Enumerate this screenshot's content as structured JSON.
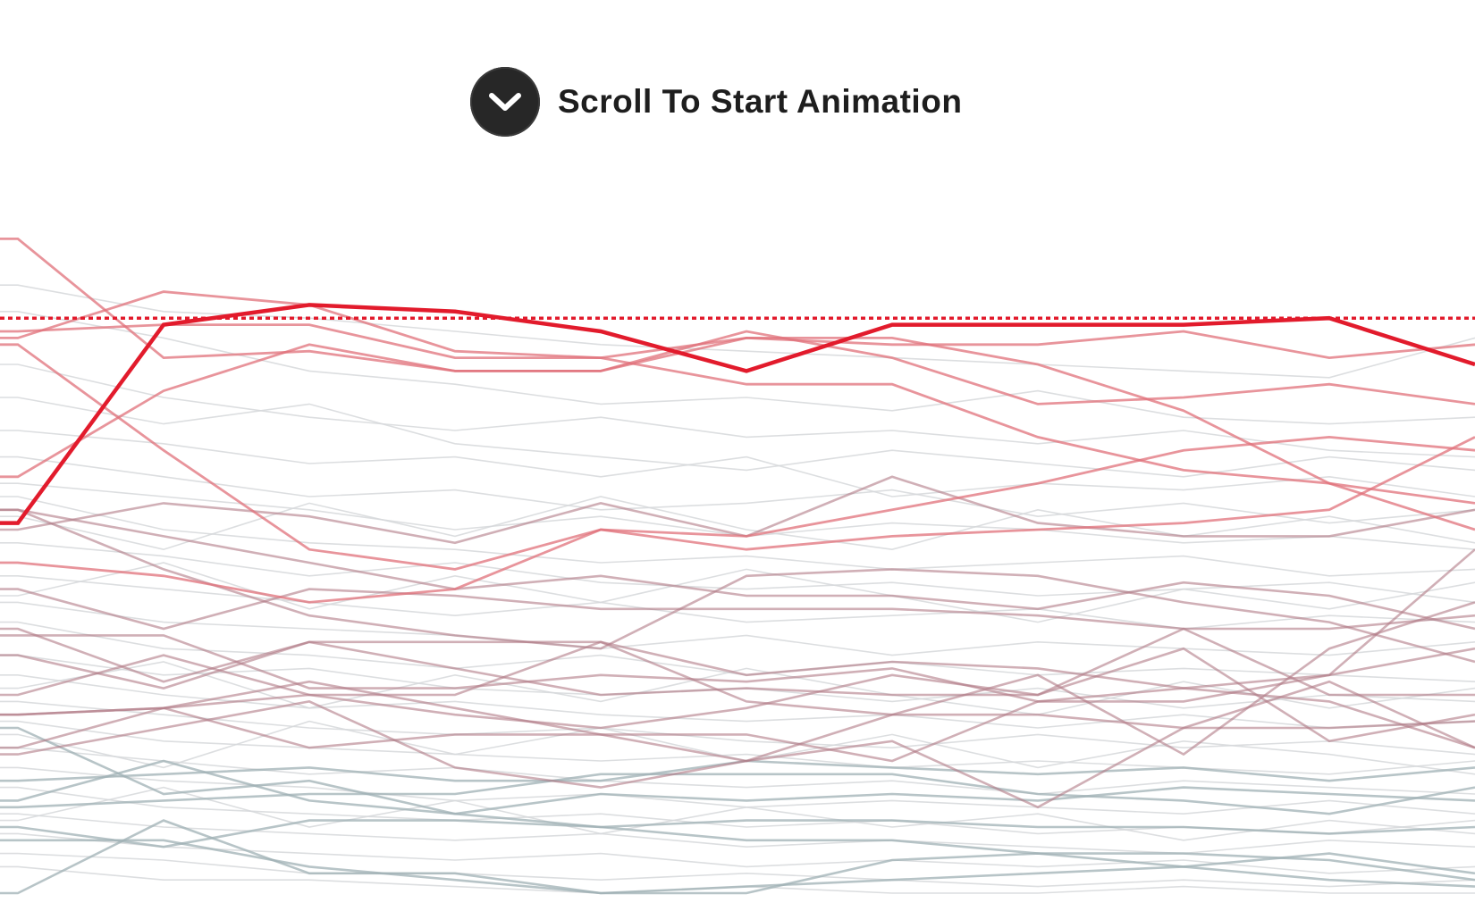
{
  "prompt": {
    "label": "Scroll To Start Animation",
    "icon": "chevron-down-icon"
  },
  "colors": {
    "highlight": "#e21b2c",
    "high": "#e0707a",
    "mid": "#b07a86",
    "low": "#9fb0b4",
    "background_line": "#d6d8da",
    "button": "#272727"
  },
  "chart_data": {
    "type": "line",
    "title": "",
    "xlabel": "",
    "ylabel": "",
    "ylim": [
      0,
      100
    ],
    "x": [
      0,
      1,
      2,
      3,
      4,
      5,
      6,
      7,
      8,
      9,
      10
    ],
    "grid": false,
    "legend": "none",
    "reference_line": {
      "value": 87,
      "style": "dotted",
      "color": "#e21b2c"
    },
    "series": [
      {
        "group": "highlight",
        "values": [
          56,
          86,
          89,
          88,
          85,
          79,
          86,
          86,
          86,
          87,
          80
        ]
      },
      {
        "group": "high",
        "values": [
          99,
          81,
          82,
          79,
          79,
          85,
          81,
          74,
          75,
          77,
          74
        ]
      },
      {
        "group": "high",
        "values": [
          84,
          91,
          89,
          82,
          81,
          77,
          77,
          69,
          64,
          62,
          59
        ]
      },
      {
        "group": "high",
        "values": [
          85,
          86,
          86,
          81,
          81,
          84,
          83,
          83,
          85,
          81,
          83
        ]
      },
      {
        "group": "high",
        "values": [
          63,
          76,
          83,
          79,
          79,
          84,
          84,
          80,
          73,
          62,
          55
        ]
      },
      {
        "group": "high",
        "values": [
          50,
          48,
          44,
          46,
          55,
          52,
          54,
          55,
          56,
          58,
          69
        ]
      },
      {
        "group": "high",
        "values": [
          83,
          67,
          52,
          49,
          55,
          54,
          58,
          62,
          67,
          69,
          67
        ]
      },
      {
        "group": "mid",
        "values": [
          55,
          59,
          57,
          53,
          59,
          54,
          63,
          56,
          54,
          54,
          58
        ]
      },
      {
        "group": "mid",
        "values": [
          58,
          54,
          50,
          46,
          48,
          45,
          45,
          43,
          47,
          45,
          40
        ]
      },
      {
        "group": "mid",
        "values": [
          46,
          40,
          46,
          45,
          43,
          43,
          43,
          42,
          40,
          40,
          42
        ]
      },
      {
        "group": "mid",
        "values": [
          58,
          49,
          42,
          39,
          37,
          48,
          49,
          48,
          44,
          41,
          35
        ]
      },
      {
        "group": "mid",
        "values": [
          40,
          32,
          38,
          38,
          38,
          33,
          35,
          34,
          31,
          33,
          37
        ]
      },
      {
        "group": "mid",
        "values": [
          39,
          39,
          31,
          31,
          33,
          32,
          34,
          29,
          29,
          33,
          52
        ]
      },
      {
        "group": "mid",
        "values": [
          30,
          36,
          30,
          30,
          38,
          29,
          27,
          27,
          25,
          25,
          26
        ]
      },
      {
        "group": "mid",
        "values": [
          27,
          28,
          32,
          28,
          24,
          20,
          27,
          33,
          21,
          37,
          44
        ]
      },
      {
        "group": "mid",
        "values": [
          36,
          31,
          38,
          34,
          30,
          31,
          30,
          30,
          37,
          23,
          27
        ]
      },
      {
        "group": "mid",
        "values": [
          27,
          28,
          30,
          27,
          25,
          28,
          33,
          30,
          40,
          30,
          30
        ]
      },
      {
        "group": "mid",
        "values": [
          22,
          28,
          22,
          24,
          24,
          24,
          20,
          29,
          31,
          29,
          22
        ]
      },
      {
        "group": "mid",
        "values": [
          21,
          25,
          29,
          19,
          16,
          20,
          23,
          13,
          25,
          32,
          22
        ]
      },
      {
        "group": "low",
        "values": [
          25,
          15,
          17,
          12,
          10,
          8,
          8,
          6,
          6,
          5,
          2
        ]
      },
      {
        "group": "low",
        "values": [
          14,
          20,
          14,
          12,
          15,
          14,
          15,
          14,
          16,
          15,
          14
        ]
      },
      {
        "group": "low",
        "values": [
          0,
          11,
          3,
          3,
          0,
          1,
          2,
          3,
          4,
          6,
          3
        ]
      },
      {
        "group": "low",
        "values": [
          10,
          7,
          11,
          11,
          10,
          11,
          11,
          10,
          10,
          9,
          10
        ]
      },
      {
        "group": "low",
        "values": [
          13,
          14,
          15,
          15,
          18,
          18,
          18,
          15,
          14,
          12,
          16
        ]
      },
      {
        "group": "low",
        "values": [
          8,
          8,
          4,
          2,
          0,
          0,
          5,
          6,
          4,
          2,
          1
        ]
      },
      {
        "group": "low",
        "values": [
          17,
          18,
          19,
          17,
          17,
          20,
          19,
          18,
          19,
          17,
          19
        ]
      },
      {
        "group": "background",
        "values": [
          92,
          88,
          87,
          85,
          83,
          82,
          81,
          80,
          79,
          78,
          84
        ]
      },
      {
        "group": "background",
        "values": [
          88,
          84,
          79,
          77,
          74,
          75,
          73,
          76,
          72,
          71,
          72
        ]
      },
      {
        "group": "background",
        "values": [
          80,
          75,
          72,
          70,
          72,
          69,
          70,
          68,
          70,
          67,
          66
        ]
      },
      {
        "group": "background",
        "values": [
          75,
          71,
          74,
          68,
          66,
          64,
          67,
          65,
          63,
          66,
          64
        ]
      },
      {
        "group": "background",
        "values": [
          70,
          68,
          65,
          66,
          63,
          66,
          60,
          62,
          61,
          63,
          60
        ]
      },
      {
        "group": "background",
        "values": [
          66,
          63,
          60,
          61,
          58,
          59,
          61,
          57,
          59,
          56,
          58
        ]
      },
      {
        "group": "background",
        "values": [
          62,
          60,
          58,
          55,
          57,
          54,
          56,
          55,
          53,
          54,
          52
        ]
      },
      {
        "group": "background",
        "values": [
          60,
          55,
          53,
          52,
          50,
          51,
          49,
          50,
          51,
          48,
          49
        ]
      },
      {
        "group": "background",
        "values": [
          53,
          51,
          48,
          50,
          47,
          46,
          47,
          45,
          46,
          47,
          44
        ]
      },
      {
        "group": "background",
        "values": [
          48,
          46,
          44,
          42,
          44,
          41,
          42,
          43,
          40,
          42,
          41
        ]
      },
      {
        "group": "background",
        "values": [
          44,
          41,
          40,
          39,
          37,
          39,
          36,
          38,
          37,
          36,
          38
        ]
      },
      {
        "group": "background",
        "values": [
          41,
          37,
          36,
          34,
          36,
          33,
          35,
          33,
          34,
          33,
          32
        ]
      },
      {
        "group": "background",
        "values": [
          36,
          33,
          34,
          31,
          30,
          31,
          29,
          31,
          28,
          30,
          29
        ]
      },
      {
        "group": "background",
        "values": [
          33,
          30,
          28,
          29,
          27,
          26,
          27,
          25,
          27,
          25,
          26
        ]
      },
      {
        "group": "background",
        "values": [
          29,
          27,
          25,
          24,
          25,
          23,
          22,
          24,
          22,
          23,
          21
        ]
      },
      {
        "group": "background",
        "values": [
          26,
          23,
          22,
          21,
          20,
          21,
          19,
          20,
          19,
          18,
          20
        ]
      },
      {
        "group": "background",
        "values": [
          22,
          20,
          18,
          19,
          17,
          16,
          17,
          15,
          17,
          16,
          15
        ]
      },
      {
        "group": "background",
        "values": [
          19,
          17,
          16,
          14,
          15,
          13,
          14,
          13,
          12,
          14,
          12
        ]
      },
      {
        "group": "background",
        "values": [
          16,
          13,
          12,
          11,
          12,
          10,
          11,
          9,
          10,
          9,
          11
        ]
      },
      {
        "group": "background",
        "values": [
          12,
          10,
          9,
          8,
          9,
          7,
          8,
          7,
          6,
          8,
          7
        ]
      },
      {
        "group": "background",
        "values": [
          9,
          7,
          6,
          5,
          6,
          4,
          5,
          4,
          5,
          3,
          4
        ]
      },
      {
        "group": "background",
        "values": [
          6,
          5,
          3,
          3,
          2,
          3,
          2,
          1,
          2,
          1,
          2
        ]
      },
      {
        "group": "background",
        "values": [
          4,
          2,
          2,
          1,
          0,
          1,
          0,
          0,
          1,
          0,
          0
        ]
      },
      {
        "group": "background",
        "values": [
          31,
          35,
          28,
          33,
          29,
          34,
          30,
          27,
          32,
          28,
          31
        ]
      },
      {
        "group": "background",
        "values": [
          24,
          19,
          26,
          21,
          25,
          20,
          24,
          19,
          23,
          21,
          18
        ]
      },
      {
        "group": "background",
        "values": [
          11,
          16,
          10,
          14,
          9,
          13,
          10,
          12,
          8,
          11,
          9
        ]
      },
      {
        "group": "background",
        "values": [
          57,
          52,
          59,
          54,
          60,
          55,
          52,
          58,
          54,
          57,
          53
        ]
      },
      {
        "group": "background",
        "values": [
          45,
          50,
          43,
          48,
          44,
          49,
          45,
          41,
          46,
          43,
          47
        ]
      }
    ]
  }
}
